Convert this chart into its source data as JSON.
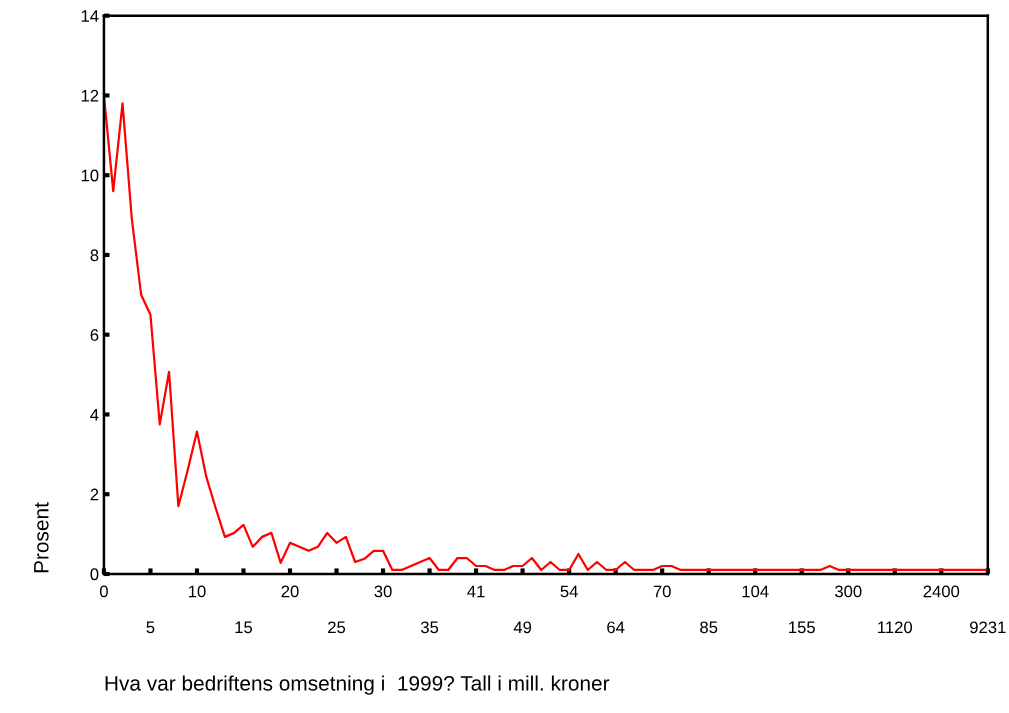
{
  "chart_data": {
    "type": "line",
    "xlabel": "Hva var bedriftens omsetning i  1999? Tall i mill. kroner",
    "ylabel": "Prosent",
    "categories": [
      "0",
      null,
      null,
      null,
      null,
      "5",
      null,
      null,
      null,
      null,
      "10",
      null,
      null,
      null,
      null,
      "15",
      null,
      null,
      null,
      null,
      "20",
      null,
      null,
      null,
      null,
      "25",
      null,
      null,
      null,
      null,
      "30",
      null,
      null,
      null,
      null,
      "35",
      null,
      null,
      null,
      null,
      "41",
      null,
      null,
      null,
      null,
      "49",
      null,
      null,
      null,
      null,
      "54",
      null,
      null,
      null,
      null,
      "64",
      null,
      null,
      null,
      null,
      "70",
      null,
      null,
      null,
      null,
      "85",
      null,
      null,
      null,
      null,
      "104",
      null,
      null,
      null,
      null,
      "155",
      null,
      null,
      null,
      null,
      "300",
      null,
      null,
      null,
      null,
      "1120",
      null,
      null,
      null,
      null,
      "2400",
      null,
      null,
      null,
      null,
      "9231"
    ],
    "series": [
      {
        "color": "#ff0000",
        "values": [
          12.0,
          9.6,
          11.8,
          8.9,
          7.0,
          6.5,
          3.75,
          5.07,
          1.7,
          2.6,
          3.57,
          2.44,
          1.66,
          0.93,
          1.03,
          1.23,
          0.68,
          0.93,
          1.03,
          0.28,
          0.78,
          0.68,
          0.58,
          0.68,
          1.03,
          0.78,
          0.93,
          0.3,
          0.38,
          0.58,
          0.58,
          0.1,
          0.1,
          0.2,
          0.3,
          0.4,
          0.1,
          0.1,
          0.4,
          0.4,
          0.2,
          0.2,
          0.1,
          0.1,
          0.2,
          0.2,
          0.4,
          0.1,
          0.3,
          0.1,
          0.1,
          0.5,
          0.1,
          0.3,
          0.1,
          0.1,
          0.3,
          0.1,
          0.1,
          0.1,
          0.2,
          0.2,
          0.1,
          0.1,
          0.1,
          0.1,
          0.1,
          0.1,
          0.1,
          0.1,
          0.1,
          0.1,
          0.1,
          0.1,
          0.1,
          0.1,
          0.1,
          0.1,
          0.2,
          0.1,
          0.1,
          0.1,
          0.1,
          0.1,
          0.1,
          0.1,
          0.1,
          0.1,
          0.1,
          0.1,
          0.1,
          0.1,
          0.1,
          0.1,
          0.1,
          0.1
        ]
      }
    ],
    "ylim": [
      0,
      14
    ],
    "yticks": [
      0,
      2,
      4,
      6,
      8,
      10,
      12,
      14
    ],
    "grid": false,
    "legend": false,
    "marker": "none",
    "line_style": "solid"
  }
}
